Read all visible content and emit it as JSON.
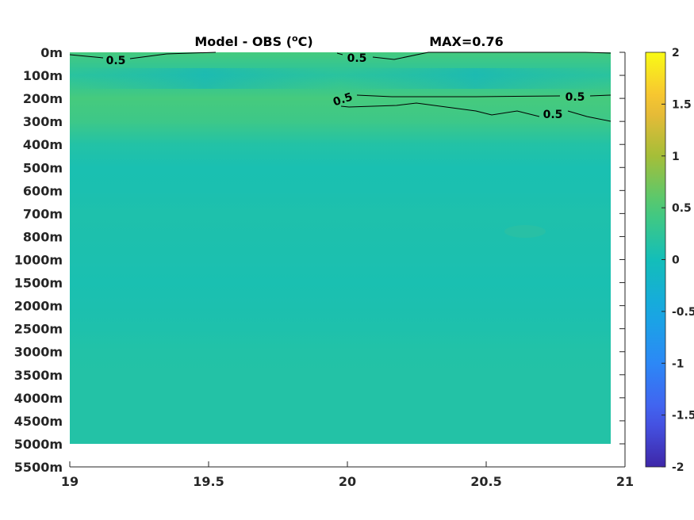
{
  "chart_data": {
    "type": "heatmap",
    "title": "Model - OBS (°C)",
    "title_parts": {
      "prefix": "Model - OBS (",
      "superscript": "o",
      "suffix": "C)"
    },
    "annotation": "MAX=0.76",
    "x_ticks": [
      "19",
      "19.5",
      "20",
      "20.5",
      "21"
    ],
    "x_tick_values": [
      19,
      19.5,
      20,
      20.5,
      21
    ],
    "xlim": [
      19,
      21
    ],
    "y_ticks": [
      "0m",
      "100m",
      "200m",
      "300m",
      "400m",
      "500m",
      "600m",
      "700m",
      "800m",
      "1000m",
      "1500m",
      "2000m",
      "2500m",
      "3000m",
      "3500m",
      "4000m",
      "4500m",
      "5000m",
      "5500m"
    ],
    "data_x_range": [
      19,
      20.95
    ],
    "data_depth_range": [
      "0m",
      "5000m"
    ],
    "colorbar": {
      "ticks": [
        "2",
        "1.5",
        "1",
        "0.5",
        "0",
        "-0.5",
        "-1",
        "-1.5",
        "-2"
      ],
      "tick_values": [
        2,
        1.5,
        1,
        0.5,
        0,
        -0.5,
        -1,
        -1.5,
        -2
      ],
      "clim": [
        -2,
        2
      ],
      "colormap": "parula"
    },
    "depth_levels": [
      "0m",
      "100m",
      "200m",
      "300m",
      "400m",
      "500m",
      "600m",
      "700m",
      "800m",
      "1000m",
      "1500m",
      "2000m",
      "2500m",
      "3000m",
      "3500m",
      "4000m",
      "4500m",
      "5000m"
    ],
    "mean_difference_by_depth": [
      0.45,
      0.2,
      0.46,
      0.38,
      0.15,
      0.06,
      0.07,
      0.1,
      0.09,
      0.08,
      0.06,
      0.08,
      0.1,
      0.14,
      0.15,
      0.15,
      0.15,
      0.15
    ],
    "contour_level": 0.5,
    "contour_labels": [
      "0.5",
      "0.5",
      "0.5",
      "0.5",
      "0.5"
    ]
  }
}
